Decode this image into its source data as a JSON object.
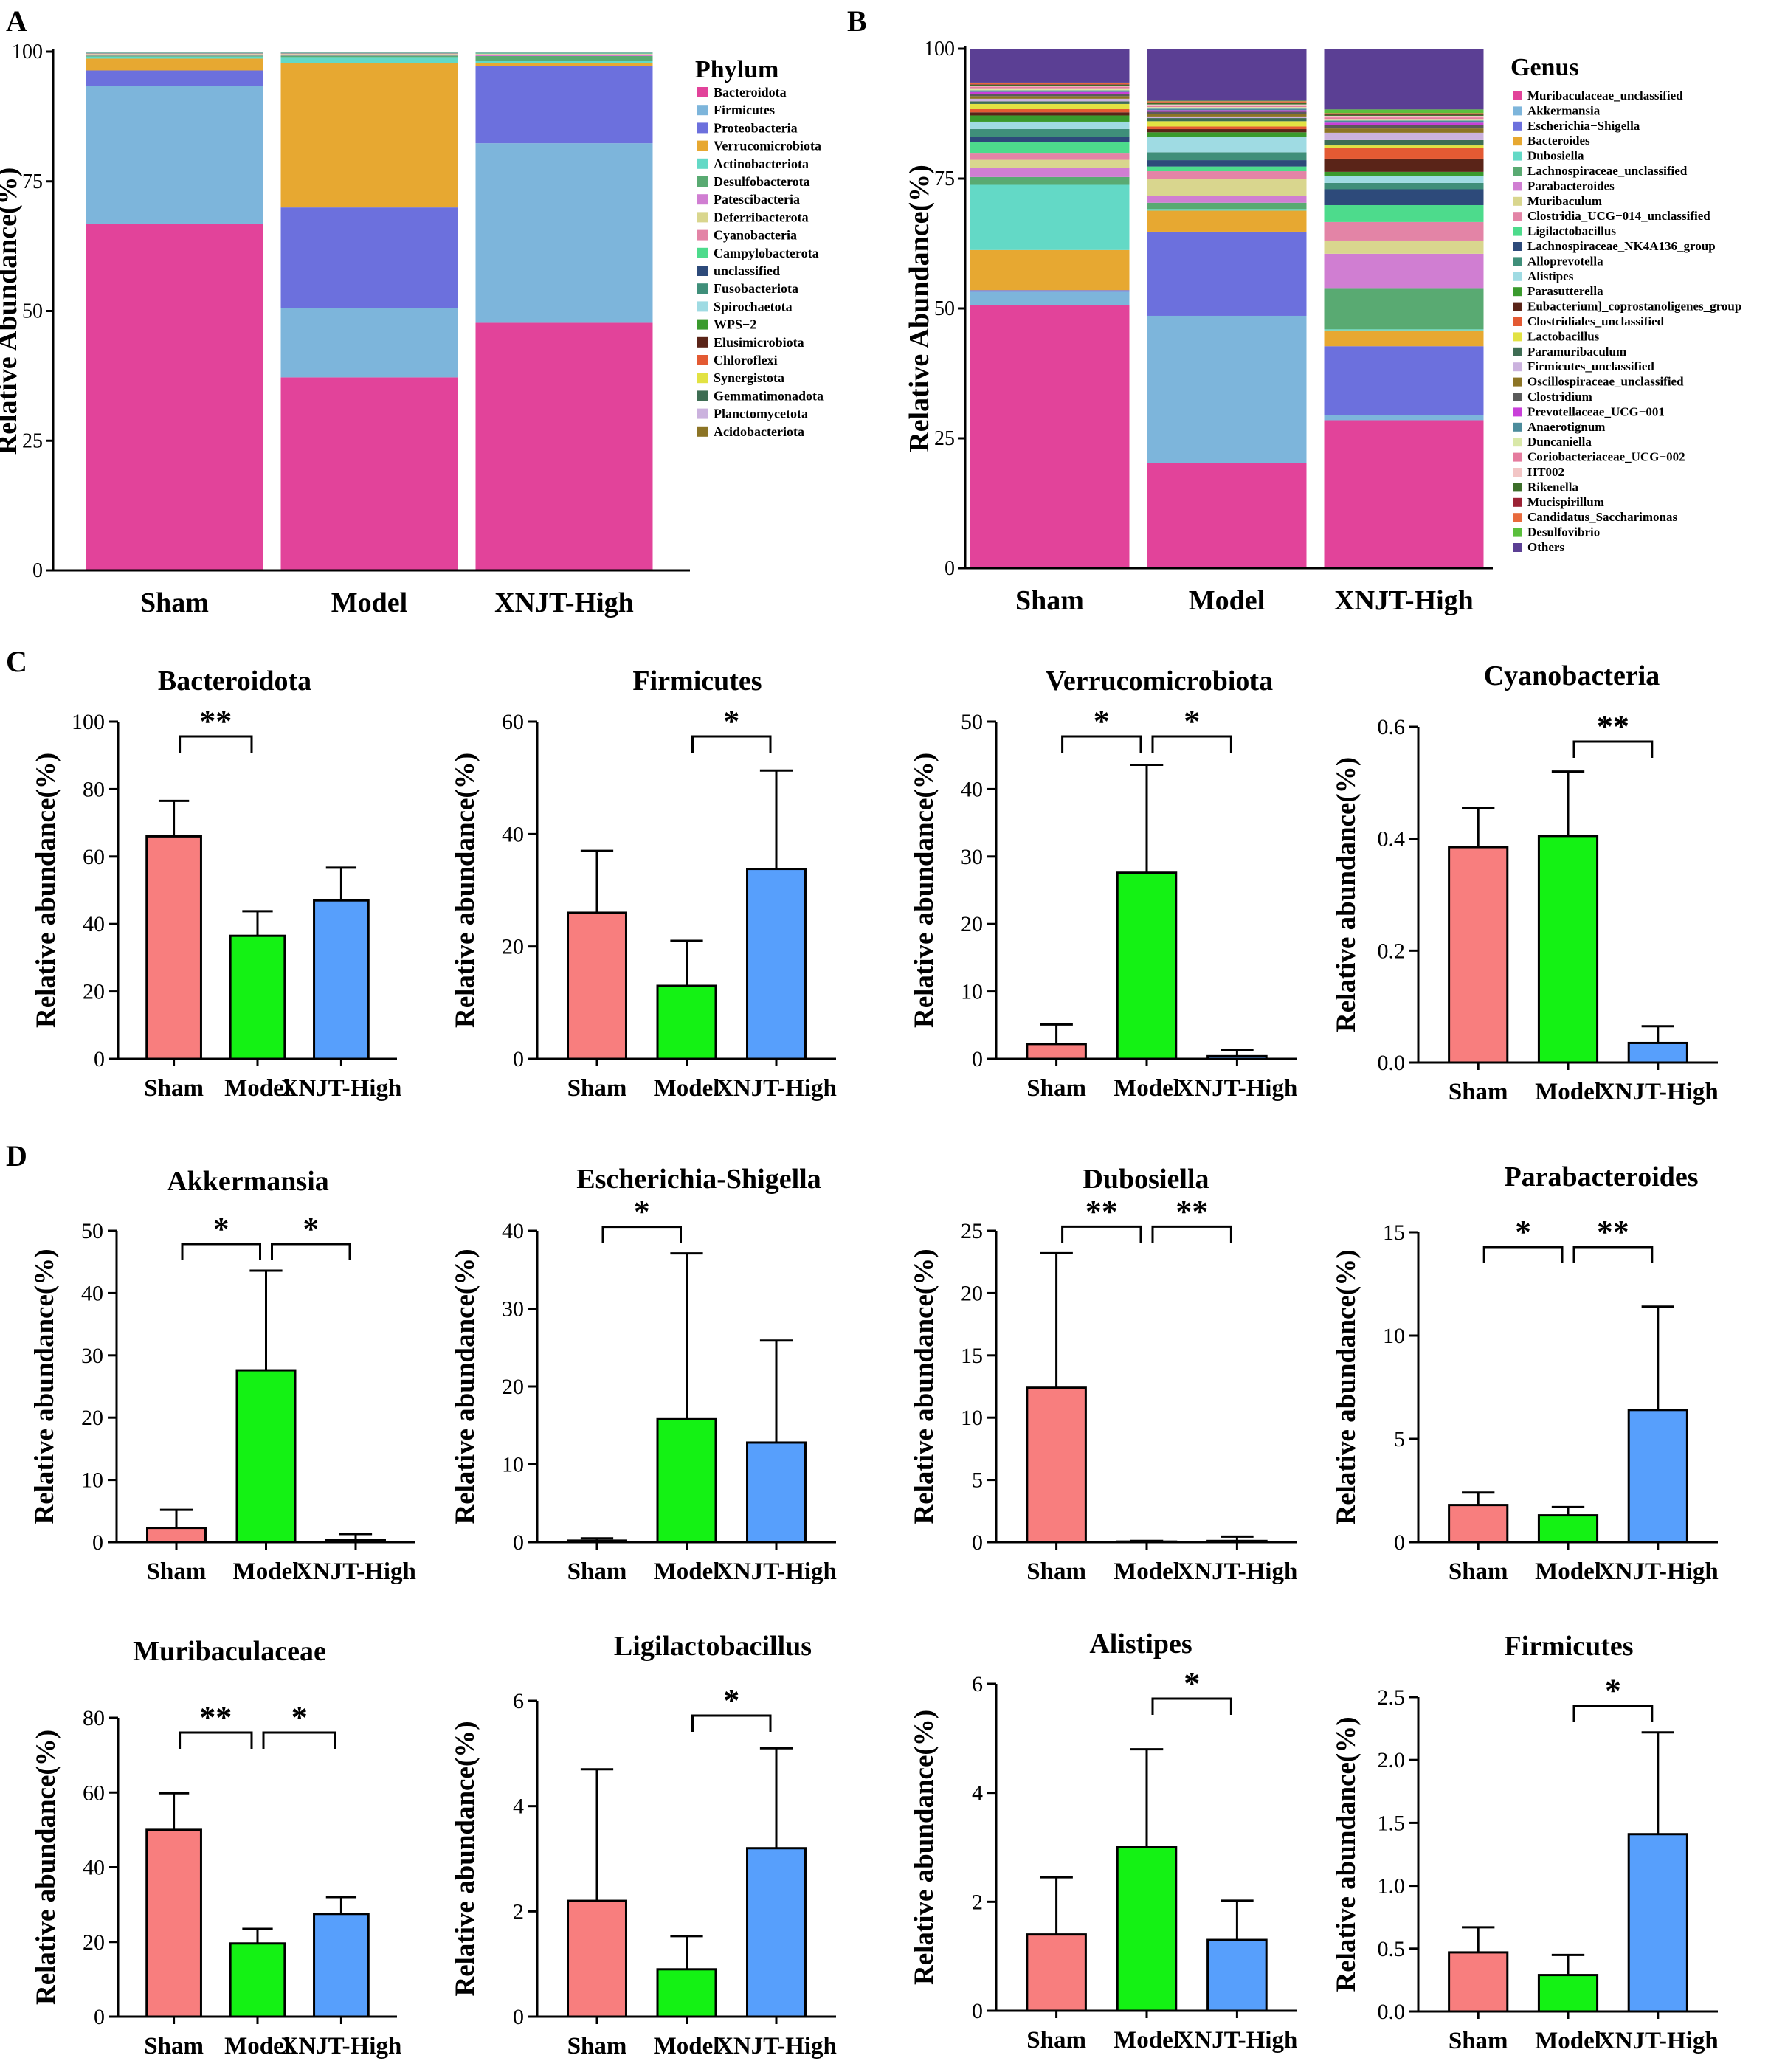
{
  "figure": {
    "panel_labels": [
      "A",
      "B",
      "C",
      "D"
    ]
  },
  "chart_data": [
    {
      "id": "A",
      "type": "stacked-bar",
      "ylabel": "Relative Abundance(%)",
      "ylim": [
        0,
        100
      ],
      "yticks": [
        0,
        25,
        50,
        75,
        100
      ],
      "categories": [
        "Sham",
        "Model",
        "XNJT-High"
      ],
      "legend_title": "Phylum",
      "series": [
        {
          "name": "Bacteroidota",
          "color": "#E2439A",
          "values": [
            67.5,
            37.5,
            48.0
          ]
        },
        {
          "name": "Firmicutes",
          "color": "#7DB5DB",
          "values": [
            26.8,
            13.5,
            34.8
          ]
        },
        {
          "name": "Proteobacteria",
          "color": "#6C70DD",
          "values": [
            3.0,
            19.5,
            15.0
          ]
        },
        {
          "name": "Verrucomicrobiota",
          "color": "#E7A831",
          "values": [
            2.3,
            28.0,
            0.6
          ]
        },
        {
          "name": "Actinobacteriota",
          "color": "#63D9C6",
          "values": [
            0.4,
            1.2,
            0.4
          ]
        },
        {
          "name": "Desulfobacterota",
          "color": "#59AA72",
          "values": [
            0.2,
            0.3,
            0.9
          ]
        },
        {
          "name": "Patescibacteria",
          "color": "#D07ED2",
          "values": [
            0.2,
            0.2,
            0.3
          ]
        },
        {
          "name": "Deferribacterota",
          "color": "#D9D68E",
          "values": [
            0.1,
            0.1,
            0.1
          ]
        },
        {
          "name": "Cyanobacteria",
          "color": "#E384A6",
          "values": [
            0.1,
            0.1,
            0.05
          ]
        },
        {
          "name": "Campylobacterota",
          "color": "#4DDB8C",
          "values": [
            0.05,
            0.05,
            0.1
          ]
        },
        {
          "name": "unclassified",
          "color": "#2D4A7A",
          "values": [
            0.05,
            0.05,
            0.05
          ]
        },
        {
          "name": "Fusobacteriota",
          "color": "#3F8F7A",
          "values": [
            0.05,
            0.05,
            0.05
          ]
        },
        {
          "name": "Spirochaetota",
          "color": "#9FDBE3",
          "values": [
            0.05,
            0.05,
            0.05
          ]
        },
        {
          "name": "WPS−2",
          "color": "#3A9A2D",
          "values": [
            0.03,
            0.03,
            0.03
          ]
        },
        {
          "name": "Elusimicrobiota",
          "color": "#5A2418",
          "values": [
            0.03,
            0.03,
            0.03
          ]
        },
        {
          "name": "Chloroflexi",
          "color": "#E35A33",
          "values": [
            0.02,
            0.02,
            0.02
          ]
        },
        {
          "name": "Synergistota",
          "color": "#E2E243",
          "values": [
            0.02,
            0.02,
            0.02
          ]
        },
        {
          "name": "Gemmatimonadota",
          "color": "#3E6D53",
          "values": [
            0.02,
            0.02,
            0.02
          ]
        },
        {
          "name": "Planctomycetota",
          "color": "#CBB2DE",
          "values": [
            0.02,
            0.02,
            0.02
          ]
        },
        {
          "name": "Acidobacteriota",
          "color": "#8C7425",
          "values": [
            0.02,
            0.02,
            0.02
          ]
        }
      ]
    },
    {
      "id": "B",
      "type": "stacked-bar",
      "ylabel": "Relative Abundance(%)",
      "ylim": [
        0,
        100
      ],
      "yticks": [
        0,
        25,
        50,
        75,
        100
      ],
      "categories": [
        "Sham",
        "Model",
        "XNJT-High"
      ],
      "legend_title": "Genus",
      "series": [
        {
          "name": "Muribaculaceae_unclassified",
          "color": "#E2439A",
          "values": [
            50.5,
            20.0,
            28.0
          ]
        },
        {
          "name": "Akkermansia",
          "color": "#7DB5DB",
          "values": [
            2.5,
            28.0,
            1.0
          ]
        },
        {
          "name": "Escherichia−Shigella",
          "color": "#6C70DD",
          "values": [
            0.3,
            16.0,
            13.0
          ]
        },
        {
          "name": "Bacteroides",
          "color": "#E7A831",
          "values": [
            7.7,
            4.0,
            3.0
          ]
        },
        {
          "name": "Dubosiella",
          "color": "#63D9C6",
          "values": [
            12.5,
            0.3,
            0.2
          ]
        },
        {
          "name": "Lachnospiraceae_unclassified",
          "color": "#59AA72",
          "values": [
            1.5,
            1.2,
            7.8
          ]
        },
        {
          "name": "Parabacteroides",
          "color": "#D07ED2",
          "values": [
            1.8,
            1.3,
            6.5
          ]
        },
        {
          "name": "Muribaculum",
          "color": "#D9D68E",
          "values": [
            1.5,
            3.2,
            2.5
          ]
        },
        {
          "name": "Clostridia_UCG−014_unclassified",
          "color": "#E384A6",
          "values": [
            1.2,
            1.5,
            3.5
          ]
        },
        {
          "name": "Ligilactobacillus",
          "color": "#4DDB8C",
          "values": [
            2.2,
            0.9,
            3.2
          ]
        },
        {
          "name": "Lachnospiraceae_NK4A136_group",
          "color": "#2D4A7A",
          "values": [
            1.0,
            1.2,
            3.0
          ]
        },
        {
          "name": "Alloprevotella",
          "color": "#3F8F7A",
          "values": [
            1.5,
            1.5,
            1.2
          ]
        },
        {
          "name": "Alistipes",
          "color": "#9FDBE3",
          "values": [
            1.4,
            3.0,
            1.3
          ]
        },
        {
          "name": "Parasutterella",
          "color": "#3A9A2D",
          "values": [
            1.2,
            0.8,
            0.8
          ]
        },
        {
          "name": "Eubacterium]_coprostanoligenes_group",
          "color": "#5A2418",
          "values": [
            0.6,
            0.6,
            2.5
          ]
        },
        {
          "name": "Clostridiales_unclassified",
          "color": "#E35A33",
          "values": [
            0.6,
            0.5,
            2.0
          ]
        },
        {
          "name": "Lactobacillus",
          "color": "#E2E243",
          "values": [
            1.0,
            1.0,
            0.5
          ]
        },
        {
          "name": "Paramuribaculum",
          "color": "#3E6D53",
          "values": [
            0.5,
            0.6,
            1.0
          ]
        },
        {
          "name": "Firmicutes_unclassified",
          "color": "#CBB2DE",
          "values": [
            0.5,
            0.3,
            1.4
          ]
        },
        {
          "name": "Oscillospiraceae_unclassified",
          "color": "#8C7425",
          "values": [
            0.5,
            0.5,
            0.8
          ]
        },
        {
          "name": "Clostridium",
          "color": "#5A5A5A",
          "values": [
            0.4,
            0.4,
            0.6
          ]
        },
        {
          "name": "Prevotellaceae_UCG−001",
          "color": "#C93FD9",
          "values": [
            0.4,
            0.3,
            0.5
          ]
        },
        {
          "name": "Anaerotignum",
          "color": "#4C8C9C",
          "values": [
            0.3,
            0.3,
            0.4
          ]
        },
        {
          "name": "Duncaniella",
          "color": "#D9E8A8",
          "values": [
            0.4,
            0.3,
            0.3
          ]
        },
        {
          "name": "Coriobacteriaceae_UCG−002",
          "color": "#E57B9E",
          "values": [
            0.3,
            0.3,
            0.3
          ]
        },
        {
          "name": "HT002",
          "color": "#F2C5C5",
          "values": [
            0.2,
            0.2,
            0.3
          ]
        },
        {
          "name": "Rikenella",
          "color": "#3C6E2A",
          "values": [
            0.2,
            0.3,
            0.2
          ]
        },
        {
          "name": "Mucispirillum",
          "color": "#9B2235",
          "values": [
            0.1,
            0.1,
            0.1
          ]
        },
        {
          "name": "Candidatus_Saccharimonas",
          "color": "#E86A3C",
          "values": [
            0.2,
            0.2,
            0.2
          ]
        },
        {
          "name": "Desulfovibrio",
          "color": "#5ABF3C",
          "values": [
            0.1,
            0.1,
            0.7
          ]
        },
        {
          "name": "Others",
          "color": "#5B3F94",
          "values": [
            6.5,
            9.9,
            11.5
          ]
        }
      ]
    },
    {
      "id": "C1",
      "type": "bar",
      "title": "Bacteroidota",
      "ylabel": "Relative abundance(%)",
      "ylim": [
        0,
        100
      ],
      "yticks": [
        0,
        20,
        40,
        60,
        80,
        100
      ],
      "categories": [
        "Sham",
        "Model",
        "XNJT-High"
      ],
      "values": [
        66,
        36.5,
        47
      ],
      "errors": [
        10.5,
        7.3,
        9.7
      ],
      "significance": [
        {
          "from": 0,
          "to": 1,
          "label": "**"
        }
      ]
    },
    {
      "id": "C2",
      "type": "bar",
      "title": "Firmicutes",
      "ylabel": "Relative abundance(%)",
      "ylim": [
        0,
        60
      ],
      "yticks": [
        0,
        20,
        40,
        60
      ],
      "categories": [
        "Sham",
        "Model",
        "XNJT-High"
      ],
      "values": [
        26,
        13,
        33.8
      ],
      "errors": [
        11,
        8,
        17.5
      ],
      "significance": [
        {
          "from": 1,
          "to": 2,
          "label": "*"
        }
      ]
    },
    {
      "id": "C3",
      "type": "bar",
      "title": "Verrucomicrobiota",
      "ylabel": "Relative  abundance(%)",
      "ylim": [
        0,
        50
      ],
      "yticks": [
        0,
        10,
        20,
        30,
        40,
        50
      ],
      "categories": [
        "Sham",
        "Model",
        "XNJT-High"
      ],
      "values": [
        2.2,
        27.6,
        0.4
      ],
      "errors": [
        2.9,
        16,
        0.9
      ],
      "significance": [
        {
          "from": 0,
          "to": 1,
          "label": "*"
        },
        {
          "from": 1,
          "to": 2,
          "label": "*"
        }
      ]
    },
    {
      "id": "C4",
      "type": "bar",
      "title": "Cyanobacteria",
      "ylabel": "Relative abundance(%)",
      "ylim": [
        0,
        0.6
      ],
      "yticks": [
        0.0,
        0.2,
        0.4,
        0.6
      ],
      "ytick_labels": [
        "0.0",
        "0.2",
        "0.4",
        "0.6"
      ],
      "categories": [
        "Sham",
        "Model",
        "XNJT-High"
      ],
      "values": [
        0.385,
        0.405,
        0.035
      ],
      "errors": [
        0.07,
        0.115,
        0.03
      ],
      "significance": [
        {
          "from": 1,
          "to": 2,
          "label": "**"
        }
      ]
    },
    {
      "id": "D1",
      "type": "bar",
      "title": "Akkermansia",
      "ylabel": "Relative abundance(%)",
      "ylim": [
        0,
        50
      ],
      "yticks": [
        0,
        10,
        20,
        30,
        40,
        50
      ],
      "categories": [
        "Sham",
        "Model",
        "XNJT-High"
      ],
      "values": [
        2.3,
        27.6,
        0.4
      ],
      "errors": [
        2.9,
        16,
        0.9
      ],
      "significance": [
        {
          "from": 0,
          "to": 1,
          "label": "*"
        },
        {
          "from": 1,
          "to": 2,
          "label": "*"
        }
      ]
    },
    {
      "id": "D2",
      "type": "bar",
      "title": "Escherichia-Shigella",
      "ylabel": "Relative abundance(%)",
      "ylim": [
        0,
        40
      ],
      "yticks": [
        0,
        10,
        20,
        30,
        40
      ],
      "categories": [
        "Sham",
        "Model",
        "XNJT-High"
      ],
      "values": [
        0.2,
        15.8,
        12.8
      ],
      "errors": [
        0.3,
        21.3,
        13.1
      ],
      "significance": [
        {
          "from": 0,
          "to": 1,
          "label": "*"
        }
      ]
    },
    {
      "id": "D3",
      "type": "bar",
      "title": "Dubosiella",
      "ylabel": "Relative abundance(%)",
      "ylim": [
        0,
        25
      ],
      "yticks": [
        0,
        5,
        10,
        15,
        20,
        25
      ],
      "categories": [
        "Sham",
        "Model",
        "XNJT-High"
      ],
      "values": [
        12.4,
        0.05,
        0.1
      ],
      "errors": [
        10.8,
        0.05,
        0.35
      ],
      "significance": [
        {
          "from": 0,
          "to": 1,
          "label": "**"
        },
        {
          "from": 1,
          "to": 2,
          "label": "**"
        }
      ]
    },
    {
      "id": "D4",
      "type": "bar",
      "title": "Parabacteroides",
      "ylabel": "Relative abundance(%)",
      "ylim": [
        0,
        15
      ],
      "yticks": [
        0,
        5,
        10,
        15
      ],
      "categories": [
        "Sham",
        "Model",
        "XNJT-High"
      ],
      "values": [
        1.8,
        1.3,
        6.4
      ],
      "errors": [
        0.6,
        0.4,
        5
      ],
      "significance": [
        {
          "from": 0,
          "to": 1,
          "label": "*"
        },
        {
          "from": 1,
          "to": 2,
          "label": "**"
        }
      ]
    },
    {
      "id": "D5",
      "type": "bar",
      "title": "Muribaculaceae",
      "ylabel": "Relative abundance(%)",
      "ylim": [
        0,
        80
      ],
      "yticks": [
        0,
        20,
        40,
        60,
        80
      ],
      "categories": [
        "Sham",
        "Model",
        "XNJT-High"
      ],
      "values": [
        50,
        19.6,
        27.5
      ],
      "errors": [
        9.8,
        3.9,
        4.5
      ],
      "significance": [
        {
          "from": 0,
          "to": 1,
          "label": "**"
        },
        {
          "from": 1,
          "to": 2,
          "label": "*"
        }
      ]
    },
    {
      "id": "D6",
      "type": "bar",
      "title": "Ligilactobacillus",
      "ylabel": "Relative abundance(%)",
      "ylim": [
        0,
        6
      ],
      "yticks": [
        0,
        2,
        4,
        6
      ],
      "categories": [
        "Sham",
        "Model",
        "XNJT-High"
      ],
      "values": [
        2.2,
        0.9,
        3.2
      ],
      "errors": [
        2.5,
        0.63,
        1.9
      ],
      "significance": [
        {
          "from": 1,
          "to": 2,
          "label": "*"
        }
      ]
    },
    {
      "id": "D7",
      "type": "bar",
      "title": "Alistipes",
      "ylabel": "Relative abundance(%)",
      "ylim": [
        0,
        6
      ],
      "yticks": [
        0,
        2,
        4,
        6
      ],
      "categories": [
        "Sham",
        "Model",
        "XNJT-High"
      ],
      "values": [
        1.4,
        3.0,
        1.3
      ],
      "errors": [
        1.05,
        1.8,
        0.72
      ],
      "significance": [
        {
          "from": 1,
          "to": 2,
          "label": "*"
        }
      ]
    },
    {
      "id": "D8",
      "type": "bar",
      "title": "Firmicutes",
      "ylabel": "Relative abundance(%)",
      "ylim": [
        0,
        2.5
      ],
      "yticks": [
        0,
        0.5,
        1.0,
        1.5,
        2.0,
        2.5
      ],
      "ytick_labels": [
        "0.0",
        "0.5",
        "1.0",
        "1.5",
        "2.0",
        "2.5"
      ],
      "categories": [
        "Sham",
        "Model",
        "XNJT-High"
      ],
      "values": [
        0.47,
        0.29,
        1.41
      ],
      "errors": [
        0.2,
        0.16,
        0.81
      ],
      "significance": [
        {
          "from": 1,
          "to": 2,
          "label": "*"
        }
      ]
    }
  ],
  "bar_colors": [
    "#F87E7E",
    "#14F214",
    "#579FFC"
  ]
}
